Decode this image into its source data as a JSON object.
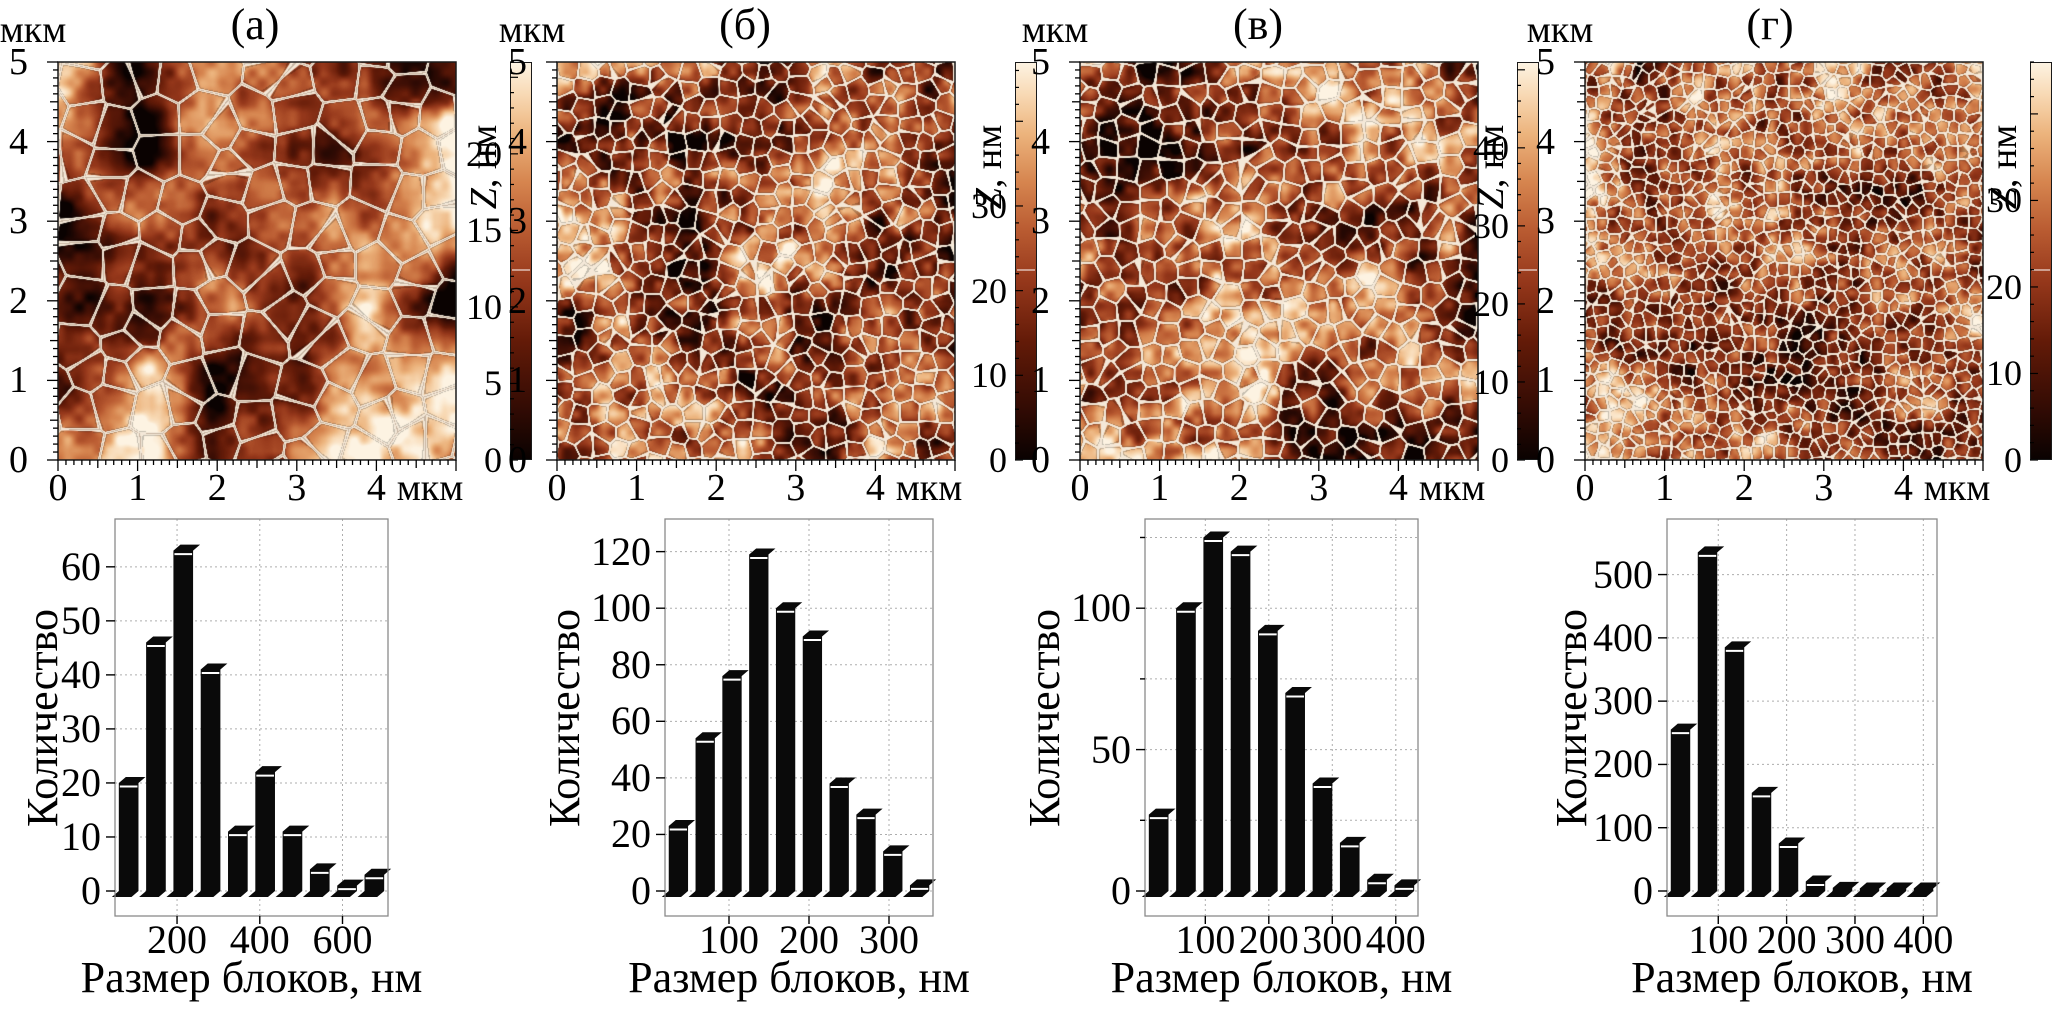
{
  "axis_unit": "мкм",
  "colorbar_title_z": "Z",
  "colorbar_title_rest": ", нм",
  "colors": {
    "background": "#ffffff",
    "text": "#000000",
    "bar_fill": "#0a0a0a",
    "bar_highlight": "#ffffff",
    "grid_line": "#adadad",
    "box_border": "#8a8a8a",
    "boundary_line": "#f4e8d8",
    "colormap": [
      "#0a0201",
      "#360c04",
      "#641b08",
      "#96381b",
      "#ba5c32",
      "#d6854f",
      "#ecb37c",
      "#f8d9b4",
      "#fdf3e2"
    ]
  },
  "chart_data": [
    {
      "type": "bar",
      "panel_label": "(а)",
      "xlabel": "Размер блоков, нм",
      "ylabel": "Количество",
      "values": [
        20,
        46,
        63,
        41,
        11,
        22,
        11,
        4,
        1,
        3
      ],
      "bin_centers_nm": [
        83,
        149,
        215,
        281,
        347,
        413,
        479,
        545,
        611,
        677
      ],
      "x_range_nm": [
        50,
        710
      ],
      "x_ticks": [
        200,
        400,
        600
      ],
      "y_ticks": [
        0,
        10,
        20,
        30,
        40,
        50,
        60
      ],
      "grid_step": 10,
      "ymax": 67,
      "grid": "dotted",
      "afm_map": {
        "unit": "мкм",
        "x_ticks": [
          0,
          1,
          2,
          3,
          4
        ],
        "y_ticks": [
          5,
          4,
          3,
          2,
          1,
          0
        ],
        "size_um": 5,
        "colorbar": {
          "label": "Z, нм",
          "ticks": [
            20,
            15,
            10,
            5,
            0
          ],
          "max_nm": 26
        }
      }
    },
    {
      "type": "bar",
      "panel_label": "(б)",
      "xlabel": "Размер блоков, нм",
      "ylabel": "Количество",
      "values": [
        23,
        54,
        76,
        119,
        100,
        90,
        38,
        27,
        14,
        2
      ],
      "bin_centers_nm": [
        37,
        70,
        104,
        137,
        171,
        204,
        238,
        271,
        305,
        338
      ],
      "x_range_nm": [
        20,
        355
      ],
      "x_ticks": [
        100,
        200,
        300
      ],
      "y_ticks": [
        0,
        20,
        40,
        60,
        80,
        100,
        120
      ],
      "grid_step": 20,
      "ymax": 128,
      "grid": "dotted",
      "afm_map": {
        "unit": "мкм",
        "x_ticks": [
          0,
          1,
          2,
          3,
          4
        ],
        "y_ticks": [
          5,
          4,
          3,
          2,
          1,
          0
        ],
        "size_um": 5,
        "colorbar": {
          "label": "Z, нм",
          "ticks": [
            30,
            20,
            10,
            0
          ],
          "max_nm": 47
        }
      }
    },
    {
      "type": "bar",
      "panel_label": "(в)",
      "xlabel": "Размер блоков, нм",
      "ylabel": "Количество",
      "values": [
        27,
        100,
        125,
        120,
        92,
        70,
        38,
        17,
        4,
        2
      ],
      "bin_centers_nm": [
        27,
        70,
        113,
        156,
        199,
        242,
        285,
        328,
        371,
        414
      ],
      "x_range_nm": [
        5,
        435
      ],
      "x_ticks": [
        100,
        200,
        300,
        400
      ],
      "y_ticks": [
        0,
        50,
        100
      ],
      "grid_step": 25,
      "ymax": 128,
      "grid": "dotted",
      "afm_map": {
        "unit": "мкм",
        "x_ticks": [
          0,
          1,
          2,
          3,
          4
        ],
        "y_ticks": [
          5,
          4,
          3,
          2,
          1,
          0
        ],
        "size_um": 5,
        "colorbar": {
          "label": "Z, нм",
          "ticks": [
            40,
            30,
            20,
            10,
            0
          ],
          "max_nm": 51
        }
      }
    },
    {
      "type": "bar",
      "panel_label": "(г)",
      "xlabel": "Размер блоков, нм",
      "ylabel": "Количество",
      "values": [
        255,
        535,
        385,
        155,
        75,
        15,
        5,
        4,
        4,
        4
      ],
      "bin_centers_nm": [
        45,
        84,
        124,
        163,
        203,
        242,
        282,
        321,
        361,
        400
      ],
      "x_range_nm": [
        25,
        420
      ],
      "x_ticks": [
        100,
        200,
        300,
        400
      ],
      "y_ticks": [
        0,
        100,
        200,
        300,
        400,
        500
      ],
      "grid_step": 100,
      "ymax": 572,
      "grid": "dotted",
      "afm_map": {
        "unit": "мкм",
        "x_ticks": [
          0,
          1,
          2,
          3,
          4
        ],
        "y_ticks": [
          5,
          4,
          3,
          2,
          1,
          0
        ],
        "size_um": 5,
        "colorbar": {
          "label": "Z, нм",
          "ticks": [
            30,
            20,
            10,
            0
          ],
          "max_nm": 46
        }
      }
    }
  ]
}
